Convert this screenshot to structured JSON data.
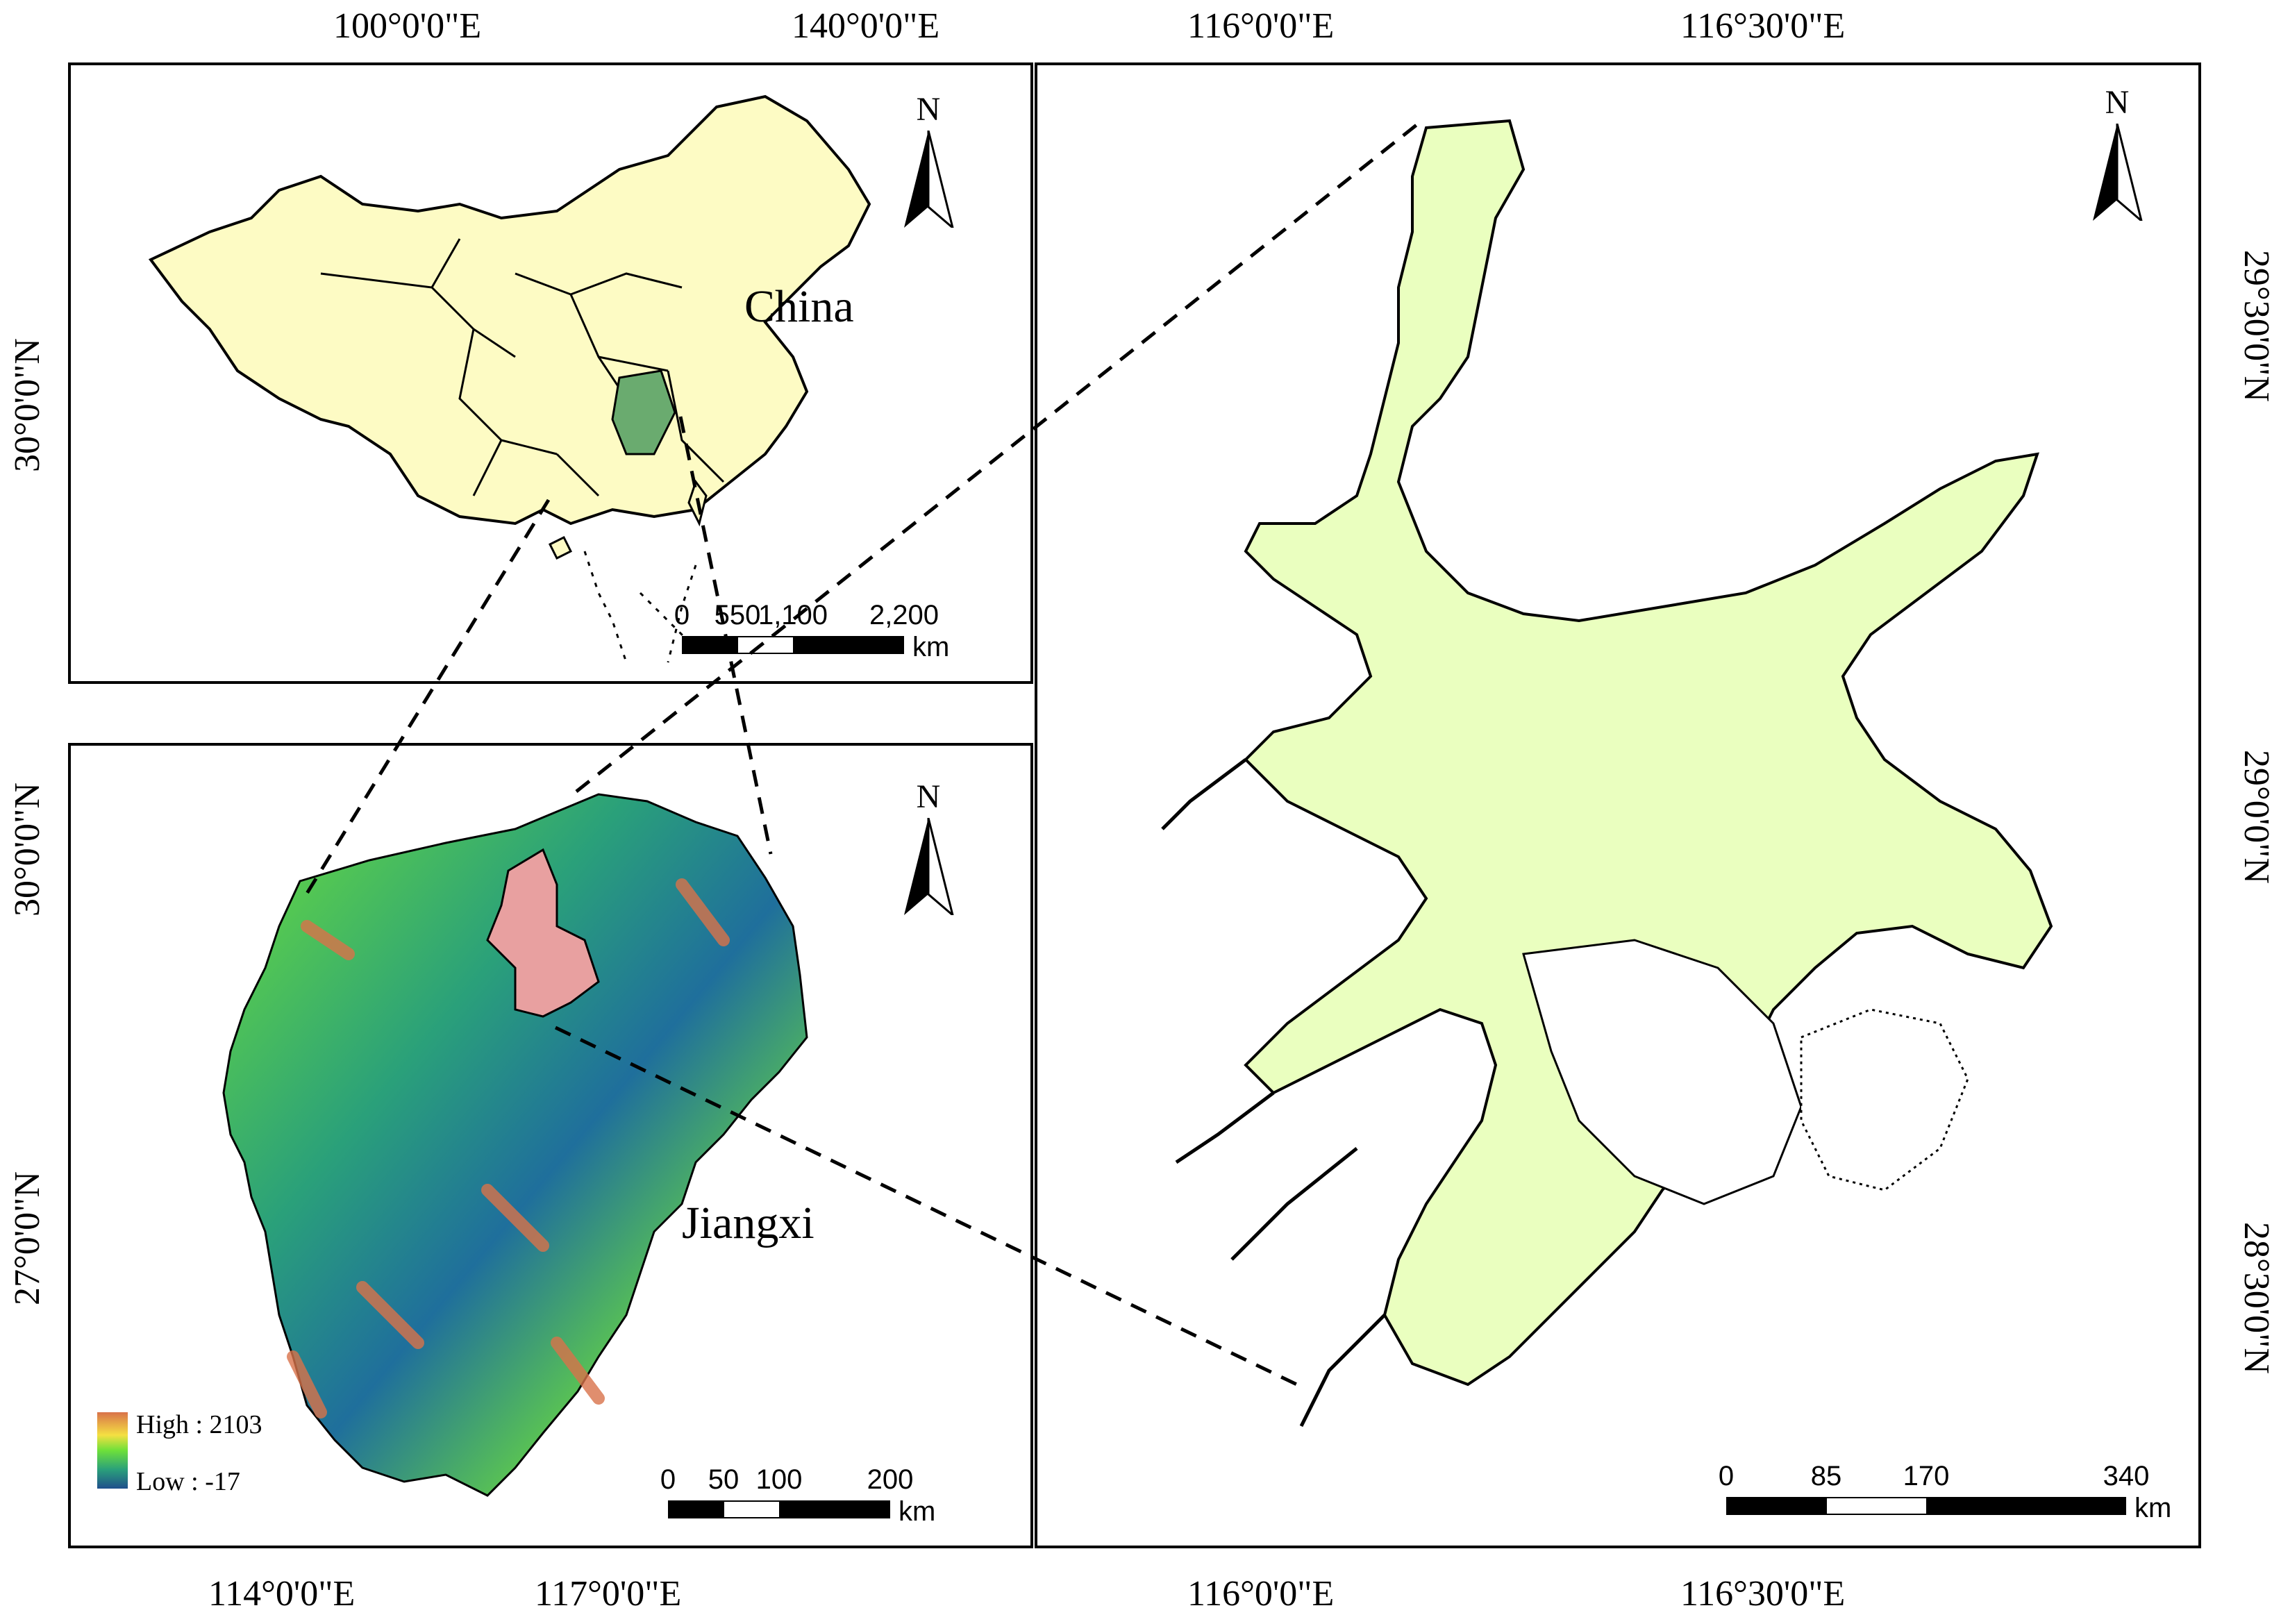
{
  "china_panel": {
    "label": "China",
    "top_coords": [
      "100°0'0\"E",
      "140°0'0\"E"
    ],
    "left_coords": [
      "30°0'0\"N"
    ],
    "north_label": "N",
    "scale": {
      "ticks": [
        "0",
        "550",
        "1,100",
        "2,200"
      ],
      "unit": "km"
    },
    "colors": {
      "land": "#fdfbc4",
      "highlight": "#6aab6f",
      "outline": "#000000"
    }
  },
  "jiangxi_panel": {
    "label": "Jiangxi",
    "bottom_coords": [
      "114°0'0\"E",
      "117°0'0\"E"
    ],
    "left_coords": [
      "30°0'0\"N",
      "27°0'0\"N"
    ],
    "north_label": "N",
    "scale": {
      "ticks": [
        "0",
        "50",
        "100",
        "200"
      ],
      "unit": "km"
    },
    "legend": {
      "high": "High : 2103",
      "low": "Low : -17"
    },
    "colors": {
      "lake": "#e8a0a0",
      "low": "#1f4f8c",
      "mid": "#6ee03a",
      "high": "#d9734a"
    }
  },
  "poyang_panel": {
    "top_coords": [
      "116°0'0\"E",
      "116°30'0\"E"
    ],
    "bottom_coords": [
      "116°0'0\"E",
      "116°30'0\"E"
    ],
    "right_coords": [
      "29°30'0\"N",
      "29°0'0\"N",
      "28°30'0\"N"
    ],
    "north_label": "N",
    "scale": {
      "ticks": [
        "0",
        "85",
        "170",
        "340"
      ],
      "unit": "km"
    },
    "colors": {
      "water": "#eaffbf",
      "outline": "#000000"
    }
  }
}
